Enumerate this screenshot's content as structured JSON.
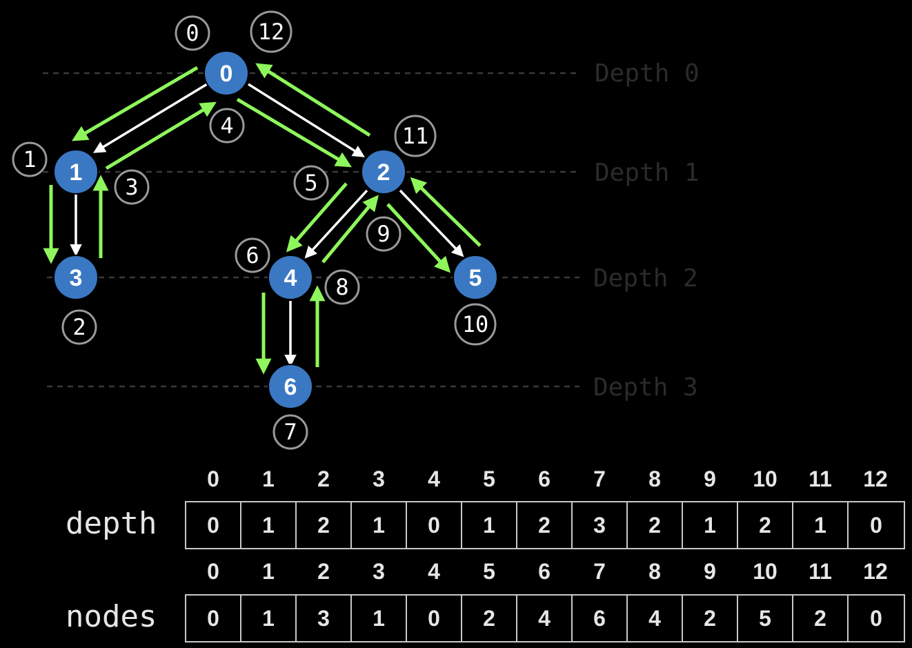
{
  "tree": {
    "depth_labels": [
      "Depth 0",
      "Depth 1",
      "Depth 2",
      "Depth 3"
    ],
    "nodes": [
      {
        "id": "0",
        "depth": 0
      },
      {
        "id": "1",
        "depth": 1
      },
      {
        "id": "2",
        "depth": 1
      },
      {
        "id": "3",
        "depth": 2
      },
      {
        "id": "4",
        "depth": 2
      },
      {
        "id": "5",
        "depth": 2
      },
      {
        "id": "6",
        "depth": 3
      }
    ],
    "edges": [
      [
        "0",
        "1"
      ],
      [
        "0",
        "2"
      ],
      [
        "1",
        "3"
      ],
      [
        "2",
        "4"
      ],
      [
        "2",
        "5"
      ],
      [
        "4",
        "6"
      ]
    ],
    "euler_steps": [
      "0",
      "1",
      "2",
      "3",
      "4",
      "5",
      "6",
      "7",
      "8",
      "9",
      "10",
      "11",
      "12"
    ]
  },
  "arrays": {
    "depth": {
      "label": "depth",
      "indices": [
        "0",
        "1",
        "2",
        "3",
        "4",
        "5",
        "6",
        "7",
        "8",
        "9",
        "10",
        "11",
        "12"
      ],
      "values": [
        "0",
        "1",
        "2",
        "1",
        "0",
        "1",
        "2",
        "3",
        "2",
        "1",
        "2",
        "1",
        "0"
      ]
    },
    "nodes": {
      "label": "nodes",
      "indices": [
        "0",
        "1",
        "2",
        "3",
        "4",
        "5",
        "6",
        "7",
        "8",
        "9",
        "10",
        "11",
        "12"
      ],
      "values": [
        "0",
        "1",
        "3",
        "1",
        "0",
        "2",
        "4",
        "6",
        "4",
        "2",
        "5",
        "2",
        "0"
      ]
    }
  },
  "colors": {
    "node_fill": "#3a78c3",
    "traverse_down": "#ffffff",
    "traverse_path": "#8ef65c",
    "guide_line": "#3a3a3a"
  }
}
